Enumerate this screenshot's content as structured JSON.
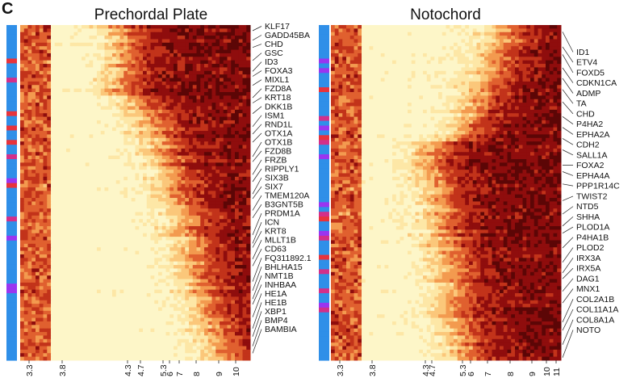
{
  "panel_letter": "C",
  "colors": {
    "heat": [
      "#fdf6c8",
      "#fde7a6",
      "#fbc77a",
      "#f39a4f",
      "#e0602f",
      "#c2331a",
      "#8f0d0d",
      "#5c0606"
    ],
    "strip_blue": "#2f8fe8",
    "strip_magenta": "#d32f8a",
    "strip_purple": "#9a35f0",
    "strip_red": "#e8333b",
    "label_line": "#222222"
  },
  "panels": [
    {
      "title": "Prechordal Plate",
      "genes": [
        "KLF17",
        "GADD45BA",
        "CHD",
        "GSC",
        "ID3",
        "FOXA3",
        "MIXL1",
        "FZD8A",
        "KRT18",
        "DKK1B",
        "ISM1",
        "RND1L",
        "OTX1A",
        "OTX1B",
        "FZD8B",
        "FRZB",
        "RIPPLY1",
        "SIX3B",
        "SIX7",
        "TMEM120A",
        "B3GNT5B",
        "PRDM1A",
        "ICN",
        "KRT8",
        "MLLT1B",
        "CD63",
        "FQ311892.1",
        "BHLHA15",
        "NMT1B",
        "INHBAA",
        "HE1A",
        "HE1B",
        "XBP1",
        "BMP4",
        "BAMBIA"
      ],
      "ticks": [
        "3.3",
        "3.8",
        "4.3",
        "4.7",
        "5.3",
        "6",
        "7",
        "8",
        "9",
        "10"
      ]
    },
    {
      "title": "Notochord",
      "genes": [
        "ID1",
        "ETV4",
        "FOXD5",
        "CDKN1CA",
        "ADMP",
        "TA",
        "CHD",
        "P4HA2",
        "EPHA2A",
        "CDH2",
        "SALL1A",
        "FOXA2",
        "EPHA4A",
        "PPP1R14C",
        "TWIST2",
        "NTD5",
        "SHHA",
        "PLOD1A",
        "P4HA1B",
        "PLOD2",
        "IRX3A",
        "IRX5A",
        "DAG1",
        "MNX1",
        "COL2A1B",
        "COL11A1A",
        "COL8A1A",
        "NOTO"
      ],
      "ticks": [
        "3.3",
        "3.8",
        "4.3",
        "4.7",
        "5.3",
        "6",
        "7",
        "8",
        "9",
        "10",
        "11"
      ]
    }
  ]
}
